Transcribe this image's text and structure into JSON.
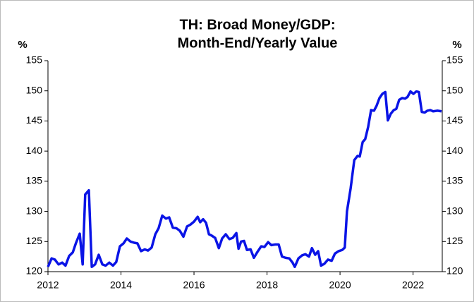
{
  "chart_data": {
    "type": "line",
    "title": [
      "TH: Broad Money/GDP:",
      "Month-End/Yearly Value"
    ],
    "ylabel": "%",
    "y2label": "%",
    "xlim": [
      2012,
      2022.8
    ],
    "xticks": [
      2012,
      2014,
      2016,
      2018,
      2020,
      2022
    ],
    "ylim": [
      120,
      155
    ],
    "yticks": [
      120,
      125,
      130,
      135,
      140,
      145,
      150,
      155
    ],
    "y2lim": [
      120,
      155
    ],
    "y2ticks": [
      120,
      125,
      130,
      135,
      140,
      145,
      150,
      155
    ],
    "series": [
      {
        "color": "#0a14e6",
        "x": [
          2012,
          2012.1,
          2012.19,
          2012.29,
          2012.39,
          2012.48,
          2012.58,
          2012.68,
          2012.77,
          2012.87,
          2012.95,
          2013.02,
          2013.12,
          2013.2,
          2013.29,
          2013.39,
          2013.49,
          2013.58,
          2013.68,
          2013.78,
          2013.87,
          2013.97,
          2014.07,
          2014.16,
          2014.26,
          2014.36,
          2014.45,
          2014.55,
          2014.65,
          2014.74,
          2014.84,
          2014.94,
          2015.03,
          2015.13,
          2015.23,
          2015.32,
          2015.42,
          2015.52,
          2015.61,
          2015.71,
          2015.81,
          2015.9,
          2016,
          2016.1,
          2016.17,
          2016.25,
          2016.33,
          2016.41,
          2016.48,
          2016.58,
          2016.68,
          2016.77,
          2016.87,
          2016.97,
          2017.06,
          2017.16,
          2017.22,
          2017.29,
          2017.37,
          2017.45,
          2017.55,
          2017.64,
          2017.74,
          2017.84,
          2017.93,
          2018.03,
          2018.12,
          2018.22,
          2018.32,
          2018.41,
          2018.51,
          2018.61,
          2018.7,
          2018.76,
          2018.86,
          2018.96,
          2019.05,
          2019.15,
          2019.23,
          2019.32,
          2019.4,
          2019.48,
          2019.57,
          2019.67,
          2019.77,
          2019.86,
          2019.96,
          2020.06,
          2020.13,
          2020.19,
          2020.29,
          2020.39,
          2020.48,
          2020.54,
          2020.62,
          2020.69,
          2020.77,
          2020.85,
          2020.93,
          2021,
          2021.08,
          2021.16,
          2021.24,
          2021.31,
          2021.39,
          2021.47,
          2021.54,
          2021.62,
          2021.7,
          2021.78,
          2021.85,
          2021.93,
          2022.01,
          2022.09,
          2022.16,
          2022.24,
          2022.32,
          2022.39,
          2022.47,
          2022.55,
          2022.67,
          2022.78
        ],
        "values": [
          120.8,
          122.2,
          122,
          121.2,
          121.5,
          121,
          122.6,
          123.2,
          124.8,
          126.3,
          121.2,
          132.8,
          133.5,
          120.8,
          121.2,
          122.8,
          121.2,
          121,
          121.5,
          121,
          121.6,
          124.2,
          124.7,
          125.5,
          125,
          124.8,
          124.7,
          123.4,
          123.7,
          123.5,
          124,
          126.2,
          127.2,
          129.3,
          128.8,
          129,
          127.3,
          127.2,
          126.8,
          125.8,
          127.5,
          127.8,
          128.3,
          129.1,
          128.2,
          128.7,
          128.1,
          126.2,
          126,
          125.6,
          123.9,
          125.5,
          126.2,
          125.4,
          125.6,
          126.4,
          123.8,
          125,
          125.1,
          123.6,
          123.7,
          122.3,
          123.3,
          124.2,
          124.1,
          124.9,
          124.4,
          124.5,
          124.5,
          122.5,
          122.3,
          122.2,
          121.5,
          120.8,
          122.2,
          122.7,
          122.9,
          122.5,
          123.9,
          122.8,
          123.4,
          121,
          121.3,
          122,
          121.8,
          123,
          123.4,
          123.6,
          124,
          130,
          133.8,
          138.5,
          139.2,
          139.1,
          141.5,
          142,
          144,
          146.8,
          146.7,
          147.5,
          148.8,
          149.5,
          149.8,
          145.1,
          146.2,
          146.8,
          147,
          148.5,
          148.8,
          148.7,
          149,
          149.9,
          149.5,
          149.9,
          149.8,
          146.5,
          146.4,
          146.7,
          146.8,
          146.6,
          146.7,
          146.6
        ]
      }
    ]
  }
}
